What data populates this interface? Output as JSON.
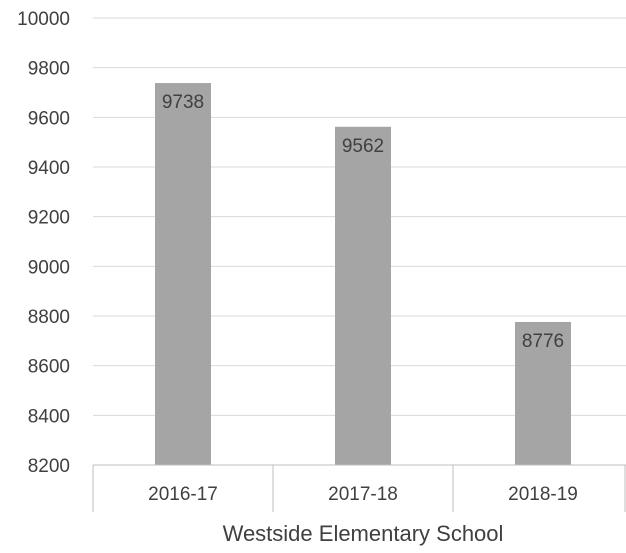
{
  "chart_data": {
    "type": "bar",
    "title": "",
    "xlabel": "",
    "ylabel": "",
    "categories": [
      "2016-17",
      "2017-18",
      "2018-19"
    ],
    "category_group_label": "Westside Elementary School",
    "values": [
      9738,
      9562,
      8776
    ],
    "data_labels": [
      "9738",
      "9562",
      "8776"
    ],
    "ylim": [
      8200,
      10000
    ],
    "y_ticks": [
      8200,
      8400,
      8600,
      8800,
      9000,
      9200,
      9400,
      9600,
      9800,
      10000
    ],
    "y_tick_labels": [
      "8200",
      "8400",
      "8600",
      "8800",
      "9000",
      "9200",
      "9400",
      "9600",
      "9800",
      "10000"
    ],
    "grid": true,
    "legend": "none",
    "colors": {
      "bar": "#a5a5a5",
      "gridline": "#d9d9d9",
      "axis_line": "#bfbfbf",
      "text": "#404040"
    }
  }
}
